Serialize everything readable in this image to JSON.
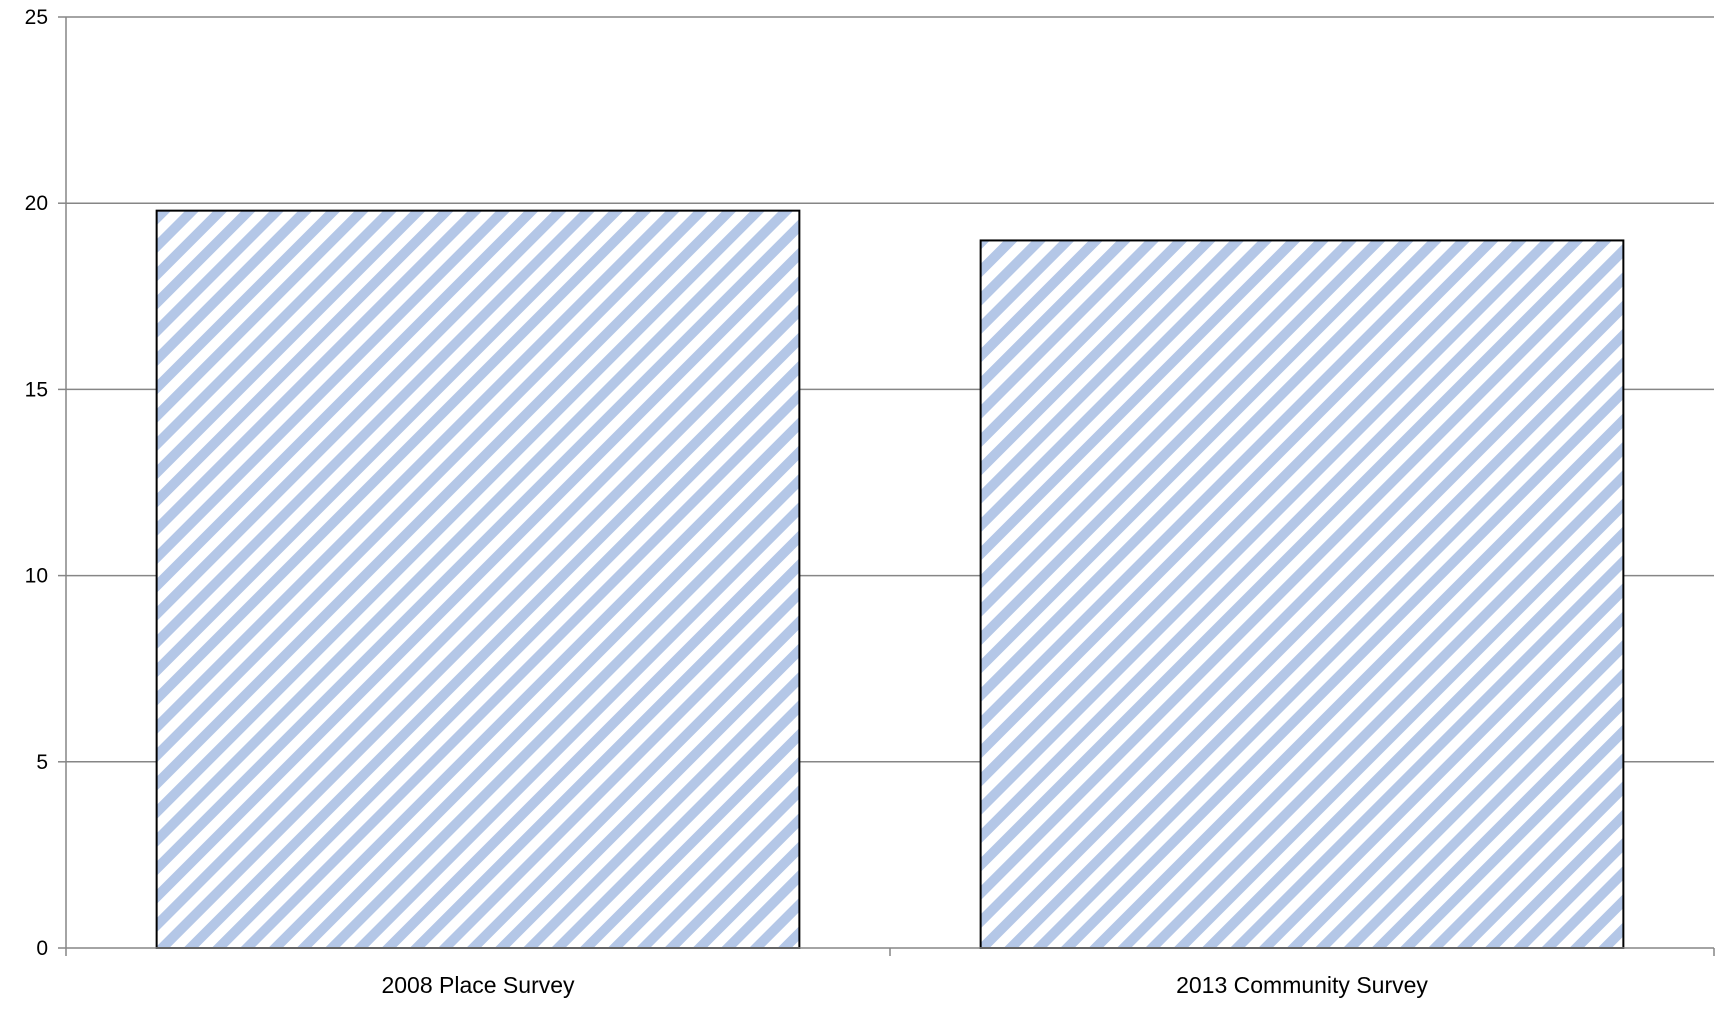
{
  "chart_data": {
    "type": "bar",
    "title": "",
    "xlabel": "",
    "ylabel": "",
    "categories": [
      "2008 Place Survey",
      "2013 Community Survey"
    ],
    "values": [
      19.8,
      19.0
    ],
    "ylim": [
      0,
      25
    ],
    "yticks": [
      0,
      5,
      10,
      15,
      20,
      25
    ],
    "grid": true,
    "legend": "none",
    "colors": {
      "stripe": "#b4c7e7",
      "bar_outline": "#000000",
      "axis": "#868686",
      "gridline": "#868686",
      "background": "#ffffff"
    }
  }
}
